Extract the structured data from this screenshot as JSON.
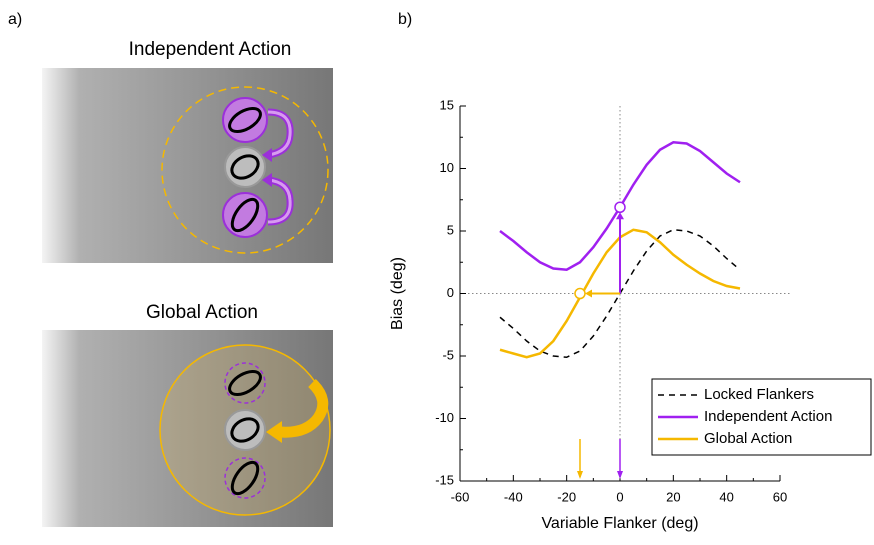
{
  "panel_labels": [
    "a)",
    "b)"
  ],
  "panel_a": {
    "titles": [
      "Independent Action",
      "Global Action"
    ]
  },
  "chart_data": {
    "type": "line",
    "xlabel": "Variable Flanker (deg)",
    "ylabel": "Bias (deg)",
    "x": [
      -45,
      -40,
      -35,
      -30,
      -25,
      -20,
      -15,
      -10,
      -5,
      0,
      5,
      10,
      15,
      20,
      25,
      30,
      35,
      40,
      45
    ],
    "series": [
      {
        "name": "Locked Flankers",
        "color": "#000000",
        "dashed": true,
        "values": [
          -1.9,
          -2.8,
          -3.8,
          -4.6,
          -5.0,
          -5.1,
          -4.6,
          -3.4,
          -1.8,
          0,
          1.8,
          3.4,
          4.6,
          5.1,
          5.0,
          4.6,
          3.8,
          2.8,
          1.9
        ]
      },
      {
        "name": "Independent Action",
        "color": "#a020f0",
        "dashed": false,
        "values": [
          5.0,
          4.2,
          3.3,
          2.5,
          2.0,
          1.9,
          2.5,
          3.7,
          5.2,
          6.9,
          8.7,
          10.3,
          11.5,
          12.1,
          12.0,
          11.4,
          10.5,
          9.6,
          8.9
        ]
      },
      {
        "name": "Global Action",
        "color": "#f5b800",
        "dashed": false,
        "values": [
          -4.5,
          -4.8,
          -5.1,
          -4.8,
          -3.8,
          -2.2,
          -0.3,
          1.6,
          3.3,
          4.5,
          5.1,
          4.9,
          4.1,
          3.1,
          2.3,
          1.6,
          1.0,
          0.6,
          0.4
        ]
      }
    ],
    "xlim": [
      -60,
      60
    ],
    "xticks": [
      -60,
      -40,
      -20,
      0,
      20,
      40,
      60
    ],
    "ylim": [
      -15,
      15
    ],
    "yticks": [
      -15,
      -10,
      -5,
      0,
      5,
      10,
      15
    ],
    "legend": "lower right"
  }
}
